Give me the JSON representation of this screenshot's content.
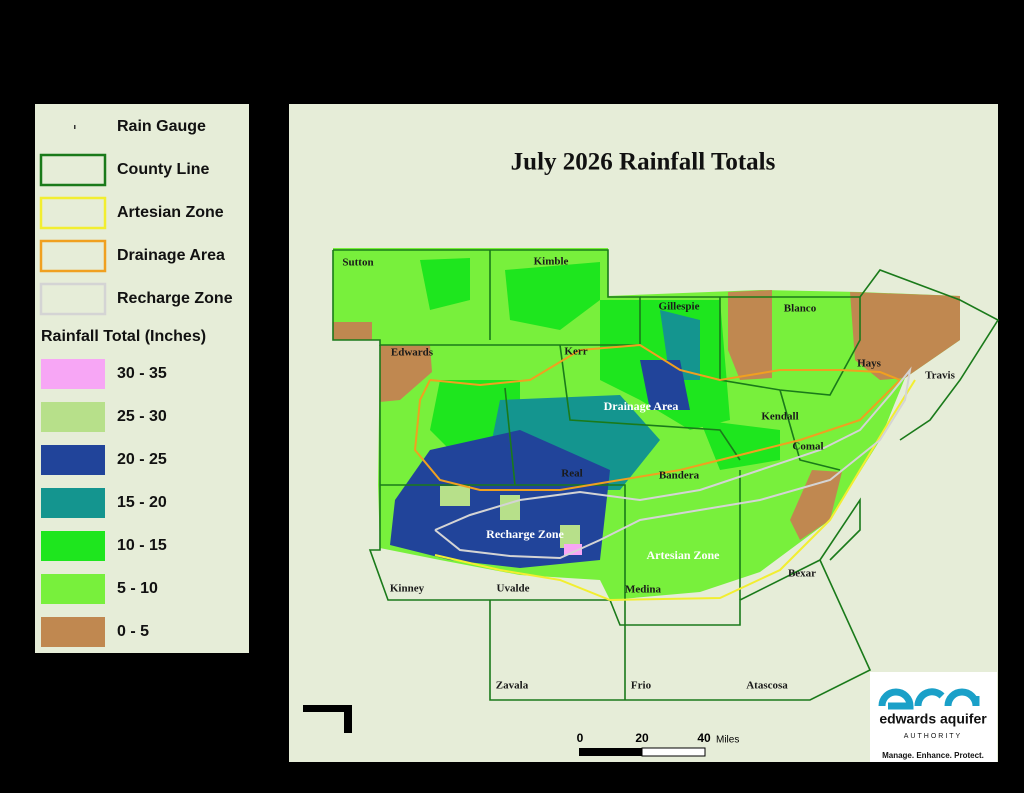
{
  "legend": {
    "items": [
      {
        "label": "Rain Gauge"
      },
      {
        "label": "County Line",
        "color": "#1a7a1a"
      },
      {
        "label": "Artesian Zone",
        "color": "#f2ee30"
      },
      {
        "label": "Drainage Area",
        "color": "#f0a020"
      },
      {
        "label": "Recharge Zone",
        "color": "#d4d4d4"
      }
    ],
    "title": "Rainfall Total (Inches)",
    "classes": [
      {
        "label": "30 - 35",
        "color": "#f7a6f5"
      },
      {
        "label": "25 - 30",
        "color": "#b7e08a"
      },
      {
        "label": "20 - 25",
        "color": "#21449a"
      },
      {
        "label": "15 - 20",
        "color": "#14958f"
      },
      {
        "label": "10 - 15",
        "color": "#1ee61e"
      },
      {
        "label": "5 - 10",
        "color": "#78f03c"
      },
      {
        "label": "0 - 5",
        "color": "#c08850"
      }
    ]
  },
  "map": {
    "title": "July 2026 Rainfall Totals",
    "counties": [
      "Sutton",
      "Kimble",
      "Gillespie",
      "Blanco",
      "Kerr",
      "Edwards",
      "Hays",
      "Travis",
      "Kendall",
      "Comal",
      "Real",
      "Bandera",
      "Kinney",
      "Uvalde",
      "Medina",
      "Bexar",
      "Zavala",
      "Frio",
      "Atascosa"
    ],
    "zones": [
      "Drainage Area",
      "Recharge Zone",
      "Artesian Zone"
    ]
  },
  "scale_bar": {
    "ticks": [
      "0",
      "20",
      "40"
    ],
    "unit": "Miles"
  },
  "logo": {
    "name": "edwards aquifer",
    "subtitle": "AUTHORITY",
    "tagline": "Manage. Enhance. Protect."
  }
}
